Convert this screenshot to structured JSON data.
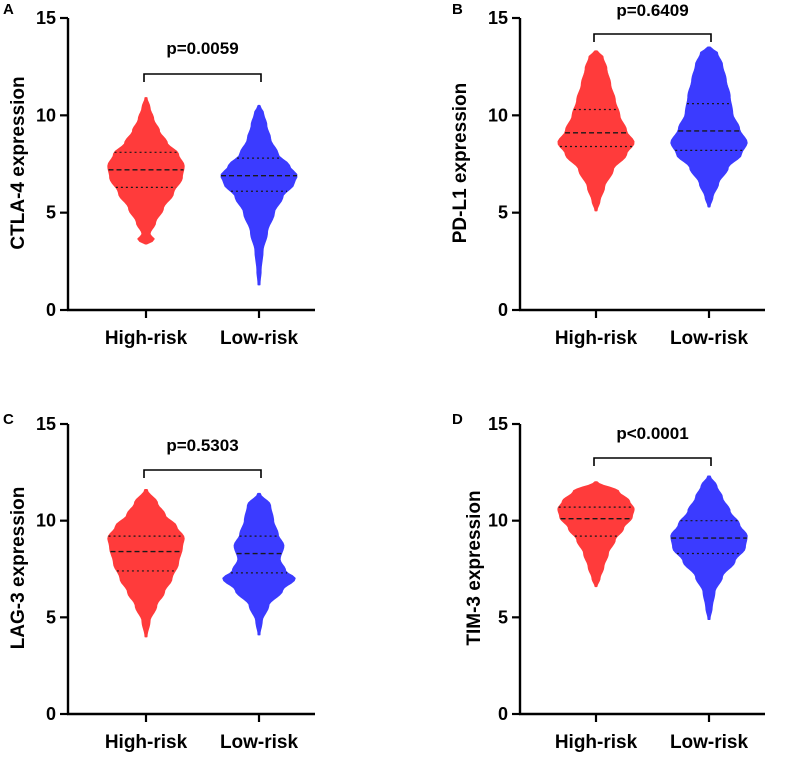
{
  "figure": {
    "colors": {
      "high_risk": "#ff3b3b",
      "low_risk": "#3b3bff",
      "axis": "#000000"
    }
  },
  "chart_data": [
    {
      "panel": "A",
      "type": "violin",
      "ylabel": "CTLA-4 expression",
      "ylim": [
        0,
        15
      ],
      "yticks": [
        0,
        5,
        10,
        15
      ],
      "categories": [
        "High-risk",
        "Low-risk"
      ],
      "p_value": "p=0.0059",
      "series": [
        {
          "name": "High-risk",
          "min": 3.4,
          "max": 10.9,
          "q1": 6.3,
          "median": 7.2,
          "q3": 8.1,
          "profile": [
            [
              3.4,
              0.02
            ],
            [
              3.6,
              0.22
            ],
            [
              3.9,
              0.1
            ],
            [
              4.5,
              0.25
            ],
            [
              5.2,
              0.45
            ],
            [
              6.0,
              0.72
            ],
            [
              6.8,
              0.95
            ],
            [
              7.4,
              1.0
            ],
            [
              8.0,
              0.85
            ],
            [
              8.6,
              0.55
            ],
            [
              9.2,
              0.35
            ],
            [
              9.8,
              0.2
            ],
            [
              10.4,
              0.1
            ],
            [
              10.9,
              0.02
            ]
          ]
        },
        {
          "name": "Low-risk",
          "min": 1.3,
          "max": 10.5,
          "q1": 6.1,
          "median": 6.9,
          "q3": 7.8,
          "profile": [
            [
              1.3,
              0.02
            ],
            [
              2.0,
              0.05
            ],
            [
              3.0,
              0.1
            ],
            [
              4.0,
              0.22
            ],
            [
              5.0,
              0.4
            ],
            [
              5.8,
              0.62
            ],
            [
              6.5,
              0.92
            ],
            [
              6.9,
              1.0
            ],
            [
              7.4,
              0.8
            ],
            [
              8.0,
              0.5
            ],
            [
              8.8,
              0.3
            ],
            [
              9.5,
              0.2
            ],
            [
              10.1,
              0.12
            ],
            [
              10.5,
              0.02
            ]
          ]
        }
      ]
    },
    {
      "panel": "B",
      "type": "violin",
      "ylabel": "PD-L1 expression",
      "ylim": [
        0,
        15
      ],
      "yticks": [
        0,
        5,
        10,
        15
      ],
      "categories": [
        "High-risk",
        "Low-risk"
      ],
      "p_value": "p=0.6409",
      "series": [
        {
          "name": "High-risk",
          "min": 5.1,
          "max": 13.3,
          "q1": 8.4,
          "median": 9.1,
          "q3": 10.3,
          "profile": [
            [
              5.1,
              0.02
            ],
            [
              5.6,
              0.1
            ],
            [
              6.3,
              0.22
            ],
            [
              7.2,
              0.45
            ],
            [
              8.0,
              0.8
            ],
            [
              8.6,
              1.0
            ],
            [
              9.2,
              0.8
            ],
            [
              10.0,
              0.62
            ],
            [
              10.8,
              0.5
            ],
            [
              11.6,
              0.38
            ],
            [
              12.4,
              0.28
            ],
            [
              13.0,
              0.18
            ],
            [
              13.3,
              0.03
            ]
          ]
        },
        {
          "name": "Low-risk",
          "min": 5.3,
          "max": 13.5,
          "q1": 8.2,
          "median": 9.2,
          "q3": 10.6,
          "profile": [
            [
              5.3,
              0.02
            ],
            [
              5.8,
              0.1
            ],
            [
              6.5,
              0.25
            ],
            [
              7.3,
              0.5
            ],
            [
              8.0,
              0.85
            ],
            [
              8.6,
              1.0
            ],
            [
              9.3,
              0.8
            ],
            [
              10.1,
              0.62
            ],
            [
              11.0,
              0.55
            ],
            [
              11.8,
              0.45
            ],
            [
              12.6,
              0.35
            ],
            [
              13.2,
              0.22
            ],
            [
              13.5,
              0.03
            ]
          ]
        }
      ]
    },
    {
      "panel": "C",
      "type": "violin",
      "ylabel": "LAG-3 expression",
      "ylim": [
        0,
        15
      ],
      "yticks": [
        0,
        5,
        10,
        15
      ],
      "categories": [
        "High-risk",
        "Low-risk"
      ],
      "p_value": "p=0.5303",
      "series": [
        {
          "name": "High-risk",
          "min": 4.0,
          "max": 11.6,
          "q1": 7.4,
          "median": 8.4,
          "q3": 9.2,
          "profile": [
            [
              4.0,
              0.02
            ],
            [
              4.8,
              0.1
            ],
            [
              5.6,
              0.28
            ],
            [
              6.3,
              0.48
            ],
            [
              7.0,
              0.68
            ],
            [
              7.8,
              0.85
            ],
            [
              8.6,
              0.95
            ],
            [
              9.1,
              1.0
            ],
            [
              9.7,
              0.8
            ],
            [
              10.3,
              0.5
            ],
            [
              10.9,
              0.3
            ],
            [
              11.6,
              0.03
            ]
          ]
        },
        {
          "name": "Low-risk",
          "min": 4.1,
          "max": 11.4,
          "q1": 7.3,
          "median": 8.3,
          "q3": 9.2,
          "profile": [
            [
              4.1,
              0.02
            ],
            [
              4.8,
              0.08
            ],
            [
              5.6,
              0.25
            ],
            [
              6.4,
              0.62
            ],
            [
              7.0,
              0.95
            ],
            [
              7.4,
              0.7
            ],
            [
              8.0,
              0.55
            ],
            [
              8.7,
              0.65
            ],
            [
              9.3,
              0.5
            ],
            [
              10.0,
              0.38
            ],
            [
              10.8,
              0.3
            ],
            [
              11.4,
              0.03
            ]
          ]
        }
      ]
    },
    {
      "panel": "D",
      "type": "violin",
      "ylabel": "TIM-3 expression",
      "ylim": [
        0,
        15
      ],
      "yticks": [
        0,
        5,
        10,
        15
      ],
      "categories": [
        "High-risk",
        "Low-risk"
      ],
      "p_value": "p<0.0001",
      "series": [
        {
          "name": "High-risk",
          "min": 6.6,
          "max": 12.0,
          "q1": 9.2,
          "median": 10.1,
          "q3": 10.7,
          "profile": [
            [
              6.6,
              0.02
            ],
            [
              7.0,
              0.1
            ],
            [
              7.6,
              0.2
            ],
            [
              8.3,
              0.32
            ],
            [
              9.0,
              0.5
            ],
            [
              9.6,
              0.72
            ],
            [
              10.2,
              0.95
            ],
            [
              10.6,
              1.0
            ],
            [
              11.0,
              0.88
            ],
            [
              11.5,
              0.6
            ],
            [
              12.0,
              0.03
            ]
          ]
        },
        {
          "name": "Low-risk",
          "min": 4.9,
          "max": 12.3,
          "q1": 8.3,
          "median": 9.1,
          "q3": 10.0,
          "profile": [
            [
              4.9,
              0.02
            ],
            [
              5.5,
              0.08
            ],
            [
              6.3,
              0.15
            ],
            [
              7.1,
              0.35
            ],
            [
              7.9,
              0.68
            ],
            [
              8.6,
              0.95
            ],
            [
              9.2,
              1.0
            ],
            [
              9.8,
              0.8
            ],
            [
              10.5,
              0.55
            ],
            [
              11.2,
              0.35
            ],
            [
              11.8,
              0.2
            ],
            [
              12.3,
              0.03
            ]
          ]
        }
      ]
    }
  ]
}
